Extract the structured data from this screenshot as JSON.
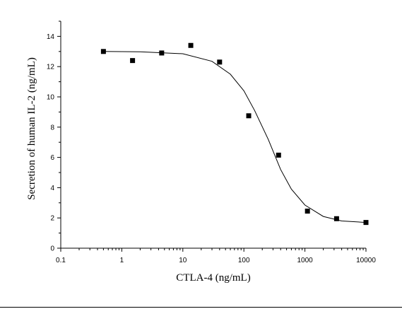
{
  "chart_data": {
    "type": "scatter",
    "title": "",
    "xlabel": "CTLA-4 (ng/mL)",
    "ylabel": "Secretion of human IL-2 (ng/mL)",
    "x_scale": "log",
    "xlim": [
      0.1,
      10000
    ],
    "ylim": [
      0,
      15
    ],
    "x_ticks": [
      0.1,
      1,
      10,
      100,
      1000,
      10000
    ],
    "x_tick_labels": [
      "0.1",
      "1",
      "10",
      "100",
      "1000",
      "10000"
    ],
    "y_ticks": [
      0,
      2,
      4,
      6,
      8,
      10,
      12,
      14
    ],
    "y_tick_labels": [
      "0",
      "2",
      "4",
      "6",
      "8",
      "10",
      "12",
      "14"
    ],
    "grid": false,
    "legend": "none",
    "series": [
      {
        "marker": "square",
        "color": "#000000",
        "points": [
          {
            "x": 0.5,
            "y": 13.0
          },
          {
            "x": 1.5,
            "y": 12.4
          },
          {
            "x": 4.5,
            "y": 12.9
          },
          {
            "x": 13.5,
            "y": 13.4
          },
          {
            "x": 40,
            "y": 12.3
          },
          {
            "x": 120,
            "y": 8.75
          },
          {
            "x": 370,
            "y": 6.15
          },
          {
            "x": 1100,
            "y": 2.45
          },
          {
            "x": 3300,
            "y": 1.95
          },
          {
            "x": 10000,
            "y": 1.7
          }
        ]
      }
    ],
    "fit_curve": {
      "type": "line",
      "color": "#000000",
      "points": [
        {
          "x": 0.5,
          "y": 13.0
        },
        {
          "x": 2,
          "y": 12.98
        },
        {
          "x": 10,
          "y": 12.85
        },
        {
          "x": 30,
          "y": 12.35
        },
        {
          "x": 60,
          "y": 11.5
        },
        {
          "x": 100,
          "y": 10.4
        },
        {
          "x": 150,
          "y": 9.1
        },
        {
          "x": 250,
          "y": 7.2
        },
        {
          "x": 400,
          "y": 5.2
        },
        {
          "x": 600,
          "y": 3.9
        },
        {
          "x": 1000,
          "y": 2.85
        },
        {
          "x": 2000,
          "y": 2.1
        },
        {
          "x": 4000,
          "y": 1.8
        },
        {
          "x": 10000,
          "y": 1.7
        }
      ]
    }
  }
}
